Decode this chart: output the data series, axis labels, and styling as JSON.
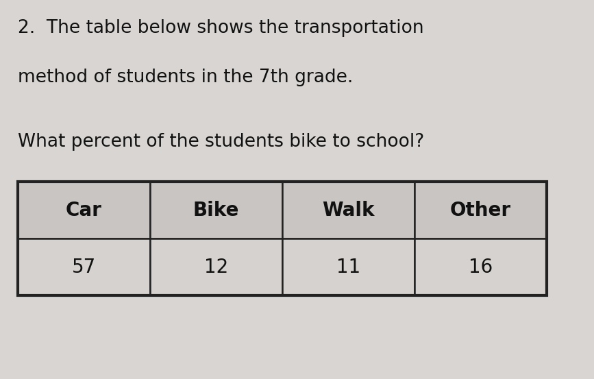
{
  "title_line1": "2.  The table below shows the transportation",
  "title_line2": "method of students in the 7th grade.",
  "question": "What percent of the students bike to school?",
  "headers": [
    "Car",
    "Bike",
    "Walk",
    "Other"
  ],
  "values": [
    "57",
    "12",
    "11",
    "16"
  ],
  "background_color": "#d8d5d2",
  "header_bg_color": "#c8c5c2",
  "cell_bg_color": "#d5d2cf",
  "border_color": "#222222",
  "text_color": "#111111",
  "title_fontsize": 19,
  "question_fontsize": 19,
  "table_header_fontsize": 20,
  "table_data_fontsize": 20
}
